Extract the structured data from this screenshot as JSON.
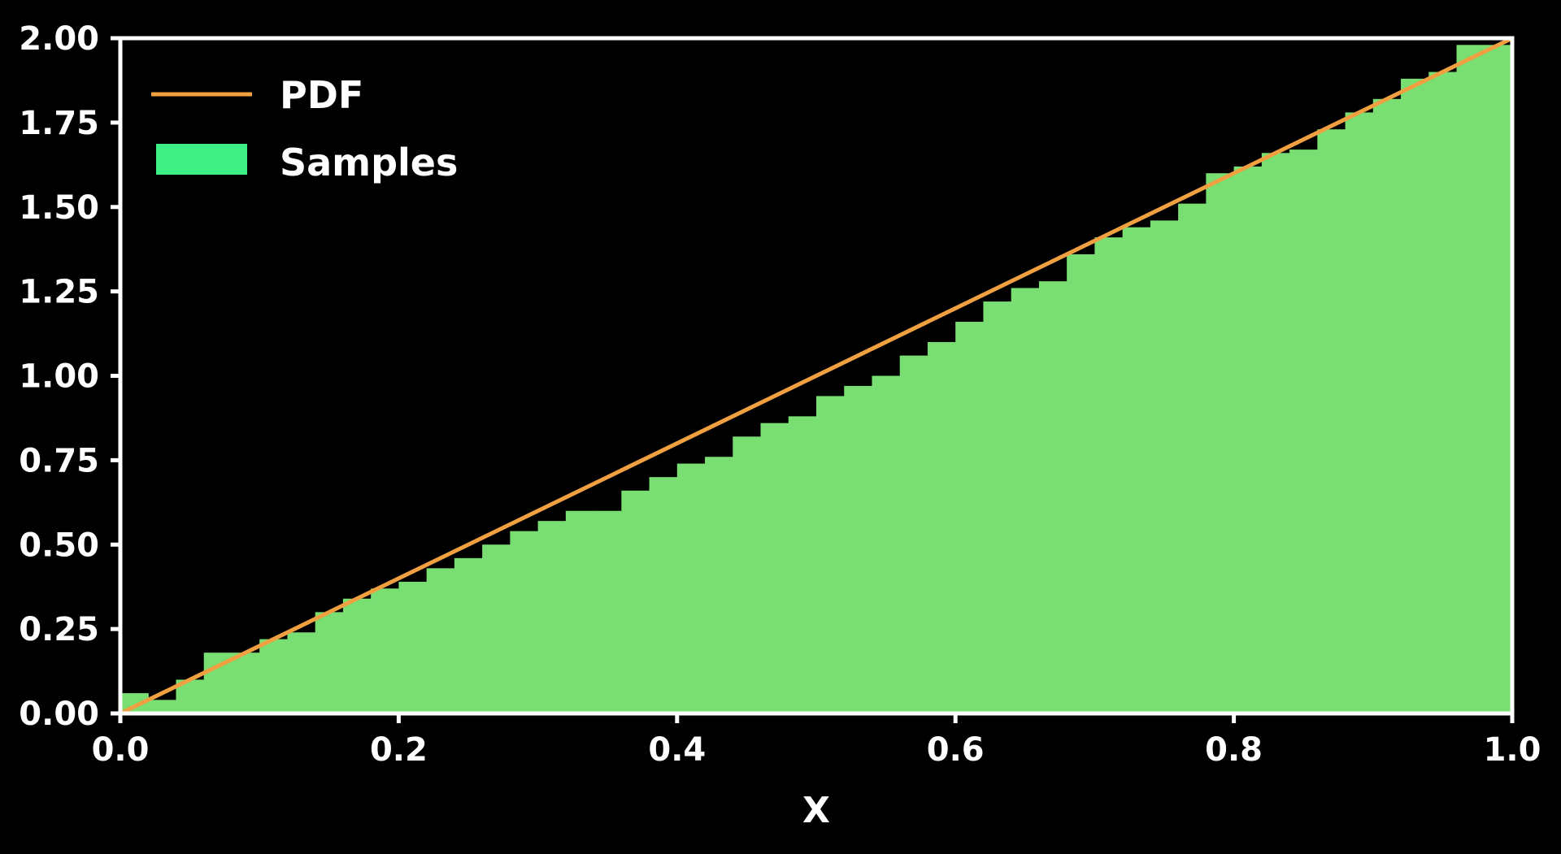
{
  "chart_data": {
    "type": "bar",
    "xlabel": "X",
    "ylabel": "",
    "xlim": [
      0.0,
      1.0
    ],
    "ylim": [
      0.0,
      2.0
    ],
    "x_ticks": [
      "0.0",
      "0.2",
      "0.4",
      "0.6",
      "0.8",
      "1.0"
    ],
    "y_ticks": [
      "0.00",
      "0.25",
      "0.50",
      "0.75",
      "1.00",
      "1.25",
      "1.50",
      "1.75",
      "2.00"
    ],
    "legend_position": "top-left",
    "colors": {
      "background": "#000000",
      "axes": "#ffffff",
      "pdf_line": "#f0a040",
      "samples_fill": "#7adf72",
      "samples_legend": "#3def85"
    },
    "series": [
      {
        "name": "PDF",
        "type": "line",
        "x": [
          0.0,
          1.0
        ],
        "y": [
          0.0,
          2.0
        ]
      },
      {
        "name": "Samples",
        "type": "histogram",
        "bin_width": 0.02,
        "bin_starts": [
          0.0,
          0.02,
          0.04,
          0.06,
          0.08,
          0.1,
          0.12,
          0.14,
          0.16,
          0.18,
          0.2,
          0.22,
          0.24,
          0.26,
          0.28,
          0.3,
          0.32,
          0.34,
          0.36,
          0.38,
          0.4,
          0.42,
          0.44,
          0.46,
          0.48,
          0.5,
          0.52,
          0.54,
          0.56,
          0.58,
          0.6,
          0.62,
          0.64,
          0.66,
          0.68,
          0.7,
          0.72,
          0.74,
          0.76,
          0.78,
          0.8,
          0.82,
          0.84,
          0.86,
          0.88,
          0.9,
          0.92,
          0.94,
          0.96,
          0.98
        ],
        "values": [
          0.06,
          0.04,
          0.1,
          0.18,
          0.18,
          0.22,
          0.24,
          0.3,
          0.34,
          0.37,
          0.39,
          0.43,
          0.46,
          0.5,
          0.54,
          0.57,
          0.6,
          0.6,
          0.66,
          0.7,
          0.74,
          0.76,
          0.82,
          0.86,
          0.88,
          0.94,
          0.97,
          1.0,
          1.06,
          1.1,
          1.16,
          1.22,
          1.26,
          1.28,
          1.36,
          1.41,
          1.44,
          1.46,
          1.51,
          1.6,
          1.62,
          1.66,
          1.67,
          1.73,
          1.78,
          1.82,
          1.88,
          1.9,
          1.98,
          1.98
        ]
      }
    ]
  }
}
